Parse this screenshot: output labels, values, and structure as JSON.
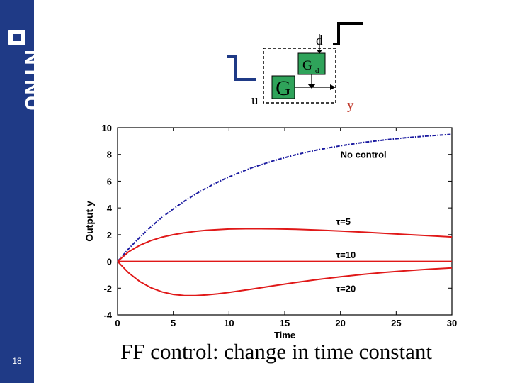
{
  "slide": {
    "page_number": "18",
    "caption": "FF control: change in time constant",
    "logo_text": "NTNU"
  },
  "schematic": {
    "block_g": "G",
    "block_gd": "G",
    "block_gd_sub": "d",
    "label_d": "d",
    "label_u": "u",
    "label_y": "y",
    "colors": {
      "block_fill": "#2fa35a",
      "input_step": "#1f3a86",
      "disturbance_step": "#000000"
    }
  },
  "chart_data": {
    "type": "line",
    "xlabel": "Time",
    "ylabel": "Output y",
    "xlim": [
      0,
      30
    ],
    "ylim": [
      -4,
      10
    ],
    "xticks": [
      0,
      5,
      10,
      15,
      20,
      25,
      30
    ],
    "yticks": [
      -4,
      -2,
      0,
      2,
      4,
      6,
      8,
      10
    ],
    "grid": false,
    "series": [
      {
        "name": "No control",
        "color": "#1a1aa0",
        "dashed": true,
        "x": [
          0,
          1,
          2,
          3,
          4,
          5,
          6,
          7,
          8,
          9,
          10,
          12,
          14,
          16,
          18,
          20,
          22,
          24,
          26,
          28,
          30
        ],
        "y": [
          0,
          0.95,
          1.81,
          2.59,
          3.3,
          3.93,
          4.51,
          5.03,
          5.51,
          5.93,
          6.32,
          6.99,
          7.53,
          7.98,
          8.35,
          8.65,
          8.89,
          9.09,
          9.26,
          9.39,
          9.5
        ]
      },
      {
        "name": "τ=5",
        "color": "#e01818",
        "dashed": false,
        "x": [
          0,
          1,
          2,
          3,
          4,
          5,
          6,
          7,
          8,
          9,
          10,
          12,
          14,
          16,
          18,
          20,
          22,
          24,
          26,
          28,
          30
        ],
        "y": [
          0,
          0.72,
          1.21,
          1.56,
          1.82,
          2.0,
          2.14,
          2.25,
          2.33,
          2.38,
          2.42,
          2.45,
          2.44,
          2.4,
          2.34,
          2.27,
          2.19,
          2.1,
          2.01,
          1.92,
          1.83
        ]
      },
      {
        "name": "τ=10",
        "color": "#e01818",
        "dashed": false,
        "x": [
          0,
          30
        ],
        "y": [
          0,
          0
        ]
      },
      {
        "name": "τ=20",
        "color": "#e01818",
        "dashed": false,
        "x": [
          0,
          1,
          2,
          3,
          4,
          5,
          6,
          7,
          8,
          9,
          10,
          12,
          14,
          16,
          18,
          20,
          22,
          24,
          26,
          28,
          30
        ],
        "y": [
          0,
          -0.86,
          -1.51,
          -1.97,
          -2.28,
          -2.47,
          -2.55,
          -2.55,
          -2.5,
          -2.42,
          -2.32,
          -2.08,
          -1.82,
          -1.57,
          -1.35,
          -1.15,
          -0.97,
          -0.82,
          -0.69,
          -0.58,
          -0.49
        ]
      }
    ],
    "annotations": [
      {
        "text": "No control",
        "x": 20,
        "y": 8
      },
      {
        "text": "τ=5",
        "x": 19.6,
        "y": 3.0
      },
      {
        "text": "τ=10",
        "x": 19.6,
        "y": 0.5
      },
      {
        "text": "τ=20",
        "x": 19.6,
        "y": -2.0
      }
    ]
  }
}
